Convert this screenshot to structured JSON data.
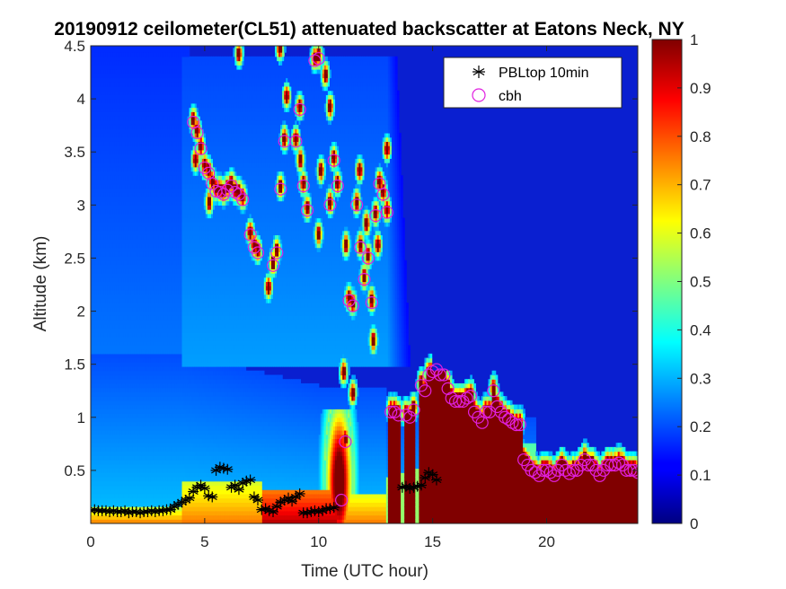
{
  "chart_data": {
    "type": "heatmap",
    "title": "20190912 ceilometer(CL51) attenuated backscatter at Eatons Neck, NY",
    "xlabel": "Time (UTC hour)",
    "ylabel": "Altitude (km)",
    "xlim": [
      0,
      24
    ],
    "ylim": [
      0,
      4.5
    ],
    "x_ticks": [
      0,
      5,
      10,
      15,
      20
    ],
    "y_ticks": [
      0.5,
      1,
      1.5,
      2,
      2.5,
      3,
      3.5,
      4,
      4.5
    ],
    "colorbar": {
      "colormap": "jet",
      "range": [
        0,
        1
      ],
      "ticks": [
        0,
        0.1,
        0.2,
        0.3,
        0.4,
        0.5,
        0.6,
        0.7,
        0.8,
        0.9,
        1
      ]
    },
    "legend": {
      "placement": "top-right",
      "entries": [
        {
          "label": "PBLtop 10min",
          "marker": "asterisk",
          "color": "#000000"
        },
        {
          "label": "cbh",
          "marker": "circle",
          "color": "#e020e0"
        }
      ]
    },
    "series": [
      {
        "name": "PBLtop 10min",
        "marker": "asterisk",
        "x": [
          0.0,
          0.17,
          0.33,
          0.5,
          0.67,
          0.83,
          1.0,
          1.17,
          1.33,
          1.5,
          1.67,
          1.83,
          2.0,
          2.17,
          2.33,
          2.5,
          2.67,
          2.83,
          3.0,
          3.17,
          3.33,
          3.5,
          3.67,
          3.83,
          4.0,
          4.17,
          4.33,
          4.5,
          4.67,
          4.83,
          5.0,
          5.17,
          5.33,
          5.5,
          5.67,
          5.83,
          6.0,
          6.17,
          6.33,
          6.5,
          6.67,
          6.83,
          7.0,
          7.17,
          7.33,
          7.5,
          7.67,
          7.83,
          8.0,
          8.17,
          8.33,
          8.5,
          8.67,
          8.83,
          9.0,
          9.17,
          9.33,
          9.5,
          9.67,
          9.83,
          10.0,
          10.17,
          10.33,
          10.5,
          10.67,
          13.67,
          13.83,
          14.0,
          14.17,
          14.33,
          14.5,
          14.67,
          14.83,
          15.0,
          15.17
        ],
        "y": [
          0.12,
          0.13,
          0.12,
          0.12,
          0.12,
          0.11,
          0.12,
          0.11,
          0.11,
          0.12,
          0.1,
          0.11,
          0.11,
          0.1,
          0.11,
          0.11,
          0.12,
          0.11,
          0.12,
          0.12,
          0.13,
          0.13,
          0.16,
          0.18,
          0.2,
          0.22,
          0.24,
          0.3,
          0.34,
          0.36,
          0.33,
          0.26,
          0.25,
          0.5,
          0.53,
          0.52,
          0.51,
          0.34,
          0.36,
          0.32,
          0.38,
          0.4,
          0.41,
          0.25,
          0.22,
          0.13,
          0.14,
          0.12,
          0.11,
          0.16,
          0.2,
          0.22,
          0.24,
          0.21,
          0.25,
          0.28,
          0.1,
          0.1,
          0.11,
          0.12,
          0.11,
          0.12,
          0.14,
          0.14,
          0.15,
          0.34,
          0.35,
          0.33,
          0.34,
          0.35,
          0.36,
          0.43,
          0.48,
          0.46,
          0.41
        ]
      },
      {
        "name": "cbh",
        "marker": "circle",
        "x": [
          4.5,
          4.67,
          4.83,
          5.0,
          5.17,
          5.33,
          5.5,
          5.67,
          5.83,
          6.0,
          6.17,
          6.33,
          6.5,
          6.67,
          7.0,
          7.17,
          7.33,
          8.0,
          8.17,
          8.33,
          8.5,
          9.0,
          9.17,
          9.33,
          9.5,
          9.83,
          10.0,
          10.5,
          10.67,
          10.83,
          11.0,
          11.17,
          11.33,
          11.5,
          11.67,
          11.83,
          12.0,
          12.17,
          12.33,
          12.5,
          12.67,
          12.83,
          13.0,
          13.17,
          13.33,
          13.5,
          13.83,
          14.0,
          14.17,
          14.5,
          14.67,
          14.83,
          15.0,
          15.17,
          15.33,
          15.5,
          15.67,
          15.83,
          16.0,
          16.17,
          16.33,
          16.5,
          16.67,
          16.83,
          17.0,
          17.17,
          17.33,
          17.5,
          17.67,
          17.83,
          18.0,
          18.17,
          18.33,
          18.5,
          18.67,
          18.83,
          19.0,
          19.17,
          19.33,
          19.5,
          19.67,
          19.83,
          20.0,
          20.17,
          20.33,
          20.5,
          20.67,
          20.83,
          21.0,
          21.17,
          21.33,
          21.5,
          21.67,
          21.83,
          22.0,
          22.17,
          22.33,
          22.5,
          22.67,
          22.83,
          23.0,
          23.17,
          23.33,
          23.5,
          23.67,
          23.83,
          24.0
        ],
        "y": [
          3.78,
          3.68,
          3.53,
          3.35,
          3.3,
          3.2,
          3.13,
          3.12,
          3.1,
          3.14,
          3.18,
          3.12,
          3.1,
          3.05,
          2.72,
          2.6,
          2.55,
          2.43,
          2.55,
          3.15,
          3.6,
          3.6,
          3.9,
          3.18,
          2.95,
          4.36,
          4.38,
          3.0,
          3.42,
          3.18,
          0.22,
          0.77,
          2.1,
          2.05,
          3.0,
          2.6,
          2.3,
          2.5,
          2.08,
          2.9,
          3.2,
          3.1,
          2.93,
          1.05,
          1.05,
          1.02,
          1.02,
          1.0,
          1.07,
          1.3,
          1.25,
          1.4,
          1.43,
          1.45,
          1.4,
          1.4,
          1.27,
          1.18,
          1.15,
          1.15,
          1.15,
          1.18,
          1.2,
          1.05,
          1.0,
          0.95,
          1.05,
          1.05,
          1.25,
          1.1,
          1.05,
          1.0,
          0.98,
          0.95,
          0.93,
          0.93,
          0.6,
          0.55,
          0.5,
          0.48,
          0.45,
          0.5,
          0.5,
          0.48,
          0.45,
          0.5,
          0.55,
          0.5,
          0.47,
          0.5,
          0.5,
          0.55,
          0.6,
          0.55,
          0.55,
          0.5,
          0.45,
          0.5,
          0.55,
          0.55,
          0.55,
          0.57,
          0.55,
          0.5,
          0.5,
          0.5,
          0.48
        ]
      }
    ]
  }
}
